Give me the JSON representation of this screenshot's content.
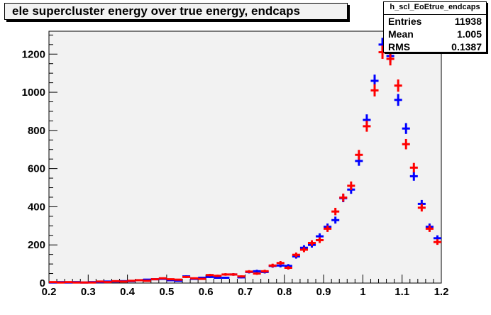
{
  "chart_data": {
    "type": "scatter",
    "title": "ele supercluster energy over true energy, endcaps",
    "xlim": [
      0.2,
      1.2
    ],
    "ylim": [
      0,
      1320
    ],
    "x_ticks": [
      "0.2",
      "0.3",
      "0.4",
      "0.5",
      "0.6",
      "0.7",
      "0.8",
      "0.9",
      "1",
      "1.1",
      "1.2"
    ],
    "y_ticks": [
      "0",
      "200",
      "400",
      "600",
      "800",
      "1000",
      "1200"
    ],
    "bin_width": 0.02,
    "series": [
      {
        "color": "#0000ff",
        "x": [
          0.21,
          0.23,
          0.25,
          0.27,
          0.29,
          0.31,
          0.33,
          0.35,
          0.37,
          0.39,
          0.41,
          0.43,
          0.45,
          0.47,
          0.49,
          0.51,
          0.53,
          0.55,
          0.57,
          0.59,
          0.61,
          0.63,
          0.65,
          0.67,
          0.69,
          0.71,
          0.73,
          0.75,
          0.77,
          0.79,
          0.81,
          0.83,
          0.85,
          0.87,
          0.89,
          0.91,
          0.93,
          0.95,
          0.97,
          0.99,
          1.01,
          1.03,
          1.05,
          1.07,
          1.09,
          1.11,
          1.13,
          1.15,
          1.17,
          1.19
        ],
        "values": [
          3,
          5,
          3,
          5,
          3,
          5,
          5,
          8,
          8,
          10,
          10,
          15,
          18,
          20,
          22,
          15,
          12,
          35,
          22,
          28,
          32,
          28,
          28,
          45,
          30,
          58,
          62,
          58,
          90,
          92,
          90,
          140,
          185,
          200,
          245,
          295,
          330,
          445,
          490,
          640,
          855,
          1060,
          1250,
          1190,
          960,
          810,
          560,
          415,
          295,
          235
        ]
      },
      {
        "color": "#ff0000",
        "x": [
          0.21,
          0.23,
          0.25,
          0.27,
          0.29,
          0.31,
          0.33,
          0.35,
          0.37,
          0.39,
          0.41,
          0.43,
          0.45,
          0.47,
          0.49,
          0.51,
          0.53,
          0.55,
          0.57,
          0.59,
          0.61,
          0.63,
          0.65,
          0.67,
          0.69,
          0.71,
          0.73,
          0.75,
          0.77,
          0.79,
          0.81,
          0.83,
          0.85,
          0.87,
          0.89,
          0.91,
          0.93,
          0.95,
          0.97,
          0.99,
          1.01,
          1.03,
          1.05,
          1.07,
          1.09,
          1.11,
          1.13,
          1.15,
          1.17,
          1.19
        ],
        "values": [
          5,
          3,
          5,
          3,
          3,
          3,
          8,
          5,
          10,
          8,
          12,
          15,
          12,
          20,
          25,
          20,
          18,
          32,
          25,
          22,
          42,
          38,
          45,
          45,
          35,
          60,
          50,
          62,
          92,
          105,
          80,
          148,
          175,
          210,
          225,
          285,
          375,
          448,
          510,
          672,
          822,
          1010,
          1210,
          1175,
          1035,
          728,
          605,
          395,
          285,
          215
        ]
      }
    ],
    "stats": {
      "name": "h_scl_EoEtrue_endcaps",
      "rows": [
        {
          "label": "Entries",
          "value": "11938"
        },
        {
          "label": "Mean",
          "value": "1.005"
        },
        {
          "label": "RMS",
          "value": "0.1387"
        }
      ]
    }
  }
}
